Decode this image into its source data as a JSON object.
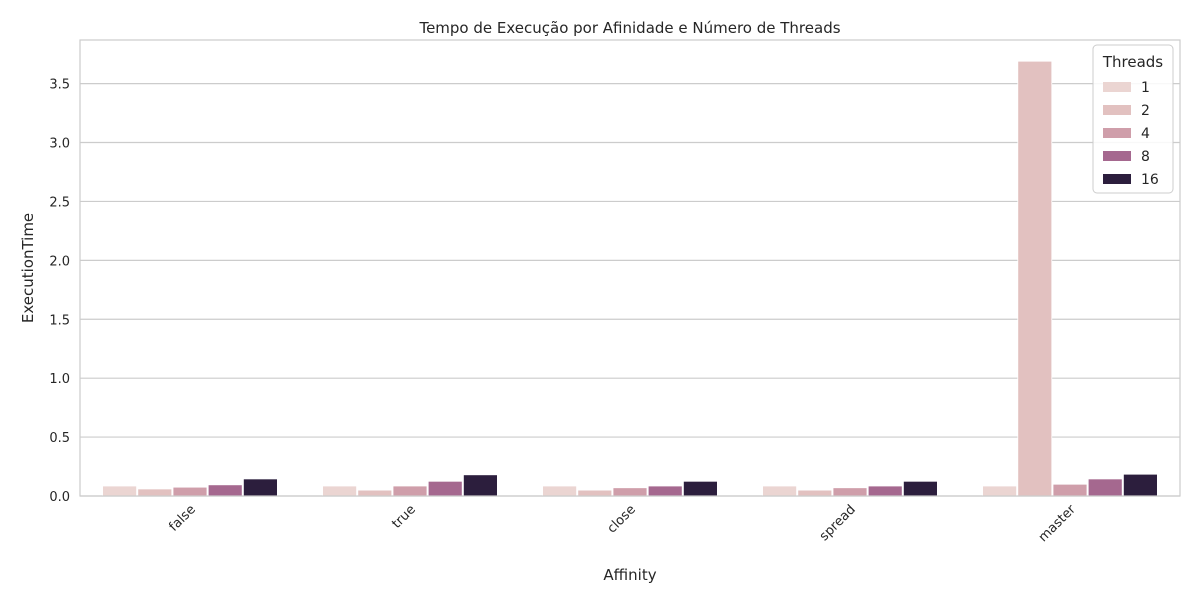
{
  "chart_data": {
    "type": "bar",
    "title": "Tempo de Execução por Afinidade e Número de Threads",
    "xlabel": "Affinity",
    "ylabel": "ExecutionTime",
    "categories": [
      "false",
      "true",
      "close",
      "spread",
      "master"
    ],
    "ylim": [
      0,
      3.87
    ],
    "yticks": [
      0.0,
      0.5,
      1.0,
      1.5,
      2.0,
      2.5,
      3.0,
      3.5
    ],
    "ytick_labels": [
      "0.0",
      "0.5",
      "1.0",
      "1.5",
      "2.0",
      "2.5",
      "3.0",
      "3.5"
    ],
    "grid": "y",
    "legend": {
      "title": "Threads",
      "position": "top-right"
    },
    "series": [
      {
        "name": "1",
        "color": "#ebd5d2",
        "values": [
          0.085,
          0.085,
          0.085,
          0.085,
          0.085
        ]
      },
      {
        "name": "2",
        "color": "#e2c1c0",
        "values": [
          0.06,
          0.05,
          0.05,
          0.05,
          3.69
        ]
      },
      {
        "name": "4",
        "color": "#cf9eaa",
        "values": [
          0.075,
          0.085,
          0.07,
          0.07,
          0.1
        ]
      },
      {
        "name": "8",
        "color": "#a5688f",
        "values": [
          0.095,
          0.125,
          0.085,
          0.085,
          0.145
        ]
      },
      {
        "name": "16",
        "color": "#2c1e3d",
        "values": [
          0.145,
          0.18,
          0.125,
          0.125,
          0.185
        ]
      }
    ]
  }
}
